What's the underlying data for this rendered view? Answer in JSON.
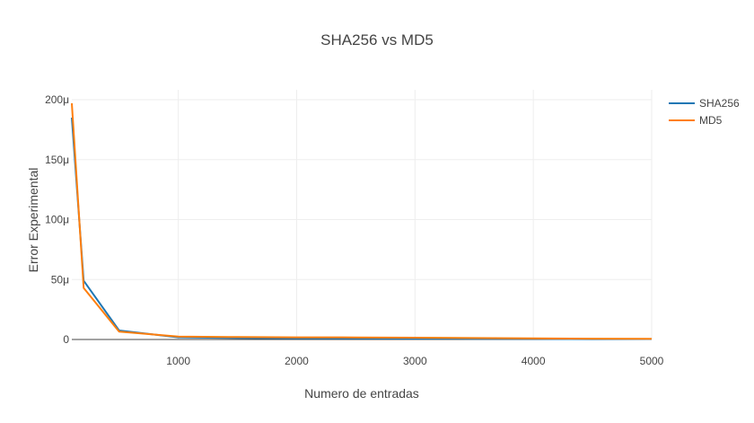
{
  "chart_data": {
    "type": "line",
    "title": "SHA256 vs MD5",
    "xlabel": "Numero de entradas",
    "ylabel": "Error Experimental",
    "xlim": [
      100,
      5000
    ],
    "ylim": [
      0,
      0.0002
    ],
    "x_ticks": [
      1000,
      2000,
      3000,
      4000,
      5000
    ],
    "x_tick_labels": [
      "1000",
      "2000",
      "3000",
      "4000",
      "5000"
    ],
    "y_ticks": [
      0,
      5e-05,
      0.0001,
      0.00015,
      0.0002
    ],
    "y_tick_labels": [
      "0",
      "50μ",
      "100μ",
      "150μ",
      "200μ"
    ],
    "grid": true,
    "legend_position": "top-right",
    "series": [
      {
        "name": "SHA256",
        "color": "#1f77b4",
        "x": [
          100,
          200,
          500,
          1000,
          1500,
          2000,
          2500,
          3000,
          3500,
          4000,
          4500,
          5000
        ],
        "y": [
          0.000185,
          4.9e-05,
          7.5e-06,
          1.8e-06,
          1.2e-06,
          9e-07,
          8e-07,
          7e-07,
          6e-07,
          5e-07,
          3e-07,
          4e-07
        ]
      },
      {
        "name": "MD5",
        "color": "#ff7f0e",
        "x": [
          100,
          200,
          500,
          1000,
          1500,
          2000,
          2500,
          3000,
          3500,
          4000,
          4500,
          5000
        ],
        "y": [
          0.000197,
          4.3e-05,
          6.5e-06,
          2.5e-06,
          2e-06,
          1.8e-06,
          1.7e-06,
          1.5e-06,
          1.2e-06,
          9e-07,
          7e-07,
          6e-07
        ]
      }
    ]
  }
}
